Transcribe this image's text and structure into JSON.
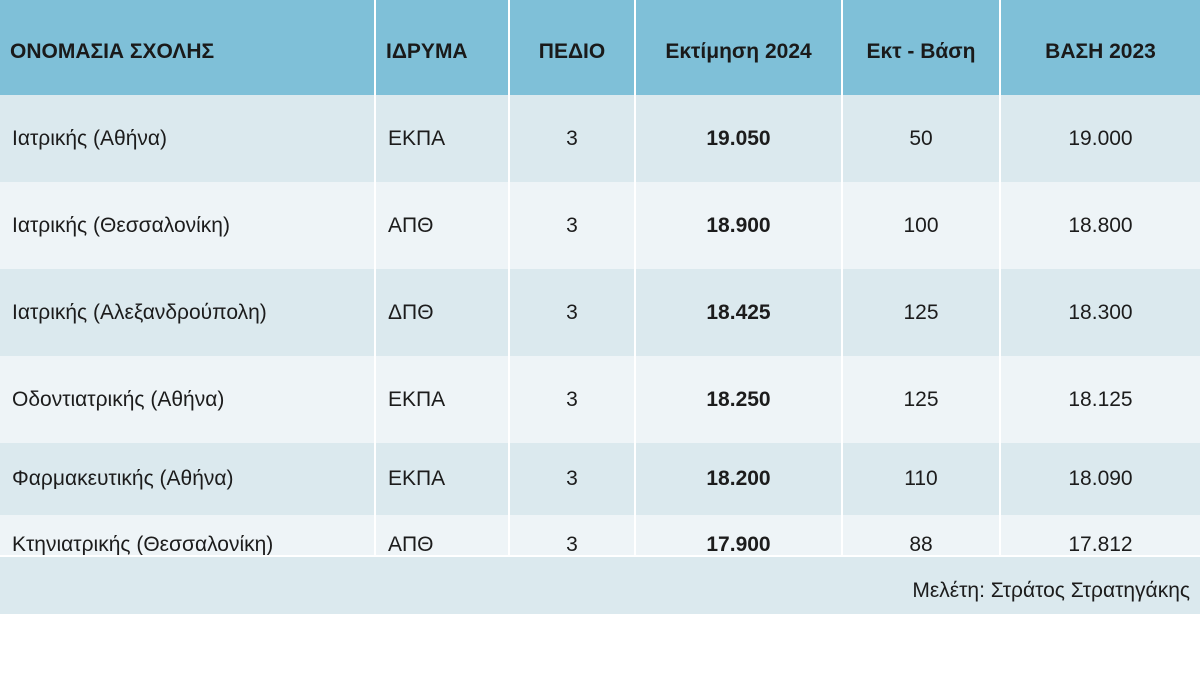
{
  "table": {
    "headers": [
      "ΟΝΟΜΑΣΙΑ ΣΧΟΛΗΣ",
      "ΙΔΡΥΜΑ",
      "ΠΕΔΙΟ",
      "Εκτίμηση  2024",
      "Εκτ - Βάση",
      "ΒΑΣΗ 2023"
    ],
    "rows": [
      {
        "school": "Ιατρικής (Αθήνα)",
        "institution": "ΕΚΠΑ",
        "field": "3",
        "estimate_2024": "19.050",
        "diff": "50",
        "base_2023": "19.000"
      },
      {
        "school": "Ιατρικής (Θεσσαλονίκη)",
        "institution": "ΑΠΘ",
        "field": "3",
        "estimate_2024": "18.900",
        "diff": "100",
        "base_2023": "18.800"
      },
      {
        "school": "Ιατρικής  (Αλεξανδρούπολη)",
        "institution": "ΔΠΘ",
        "field": "3",
        "estimate_2024": "18.425",
        "diff": "125",
        "base_2023": "18.300"
      },
      {
        "school": "Οδοντιατρικής (Αθήνα)",
        "institution": "ΕΚΠΑ",
        "field": "3",
        "estimate_2024": "18.250",
        "diff": "125",
        "base_2023": "18.125"
      },
      {
        "school": "Φαρμακευτικής (Αθήνα)",
        "institution": "ΕΚΠΑ",
        "field": "3",
        "estimate_2024": "18.200",
        "diff": "110",
        "base_2023": "18.090"
      },
      {
        "school": "Κτηνιατρικής (Θεσσαλονίκη)",
        "institution": "ΑΠΘ",
        "field": "3",
        "estimate_2024": "17.900",
        "diff": "88",
        "base_2023": "17.812"
      }
    ]
  },
  "footer": {
    "credit": "Μελέτη: Στράτος Στρατηγάκης"
  },
  "colors": {
    "header_bg": "#7fc0d8",
    "row_a": "#dbe9ee",
    "row_b": "#eef4f7"
  }
}
